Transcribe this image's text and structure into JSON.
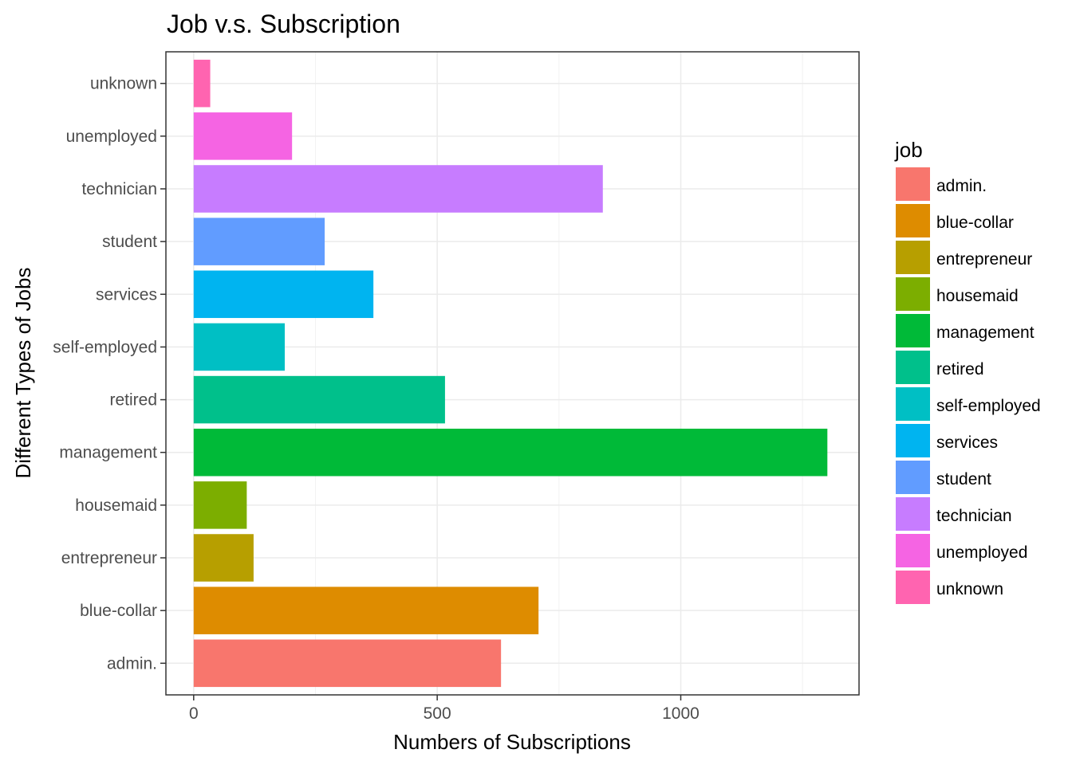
{
  "chart_data": {
    "type": "bar",
    "orientation": "horizontal",
    "title": "Job v.s. Subscription",
    "xlabel": "Numbers of Subscriptions",
    "ylabel": "Different Types of Jobs",
    "categories": [
      "admin.",
      "blue-collar",
      "entrepreneur",
      "housemaid",
      "management",
      "retired",
      "self-employed",
      "services",
      "student",
      "technician",
      "unemployed",
      "unknown"
    ],
    "values": [
      631,
      708,
      123,
      109,
      1301,
      516,
      187,
      369,
      269,
      840,
      202,
      34
    ],
    "colors": [
      "#F8766D",
      "#DE8C00",
      "#B79F00",
      "#7CAE00",
      "#00BA38",
      "#00C08B",
      "#00BFC4",
      "#00B4F0",
      "#619CFF",
      "#C77CFF",
      "#F564E3",
      "#FF64B0"
    ],
    "xlim": [
      -57,
      1366
    ],
    "xticks": [
      0,
      500,
      1000
    ],
    "grid": true,
    "legend": {
      "title": "job",
      "position": "right",
      "entries": [
        "admin.",
        "blue-collar",
        "entrepreneur",
        "housemaid",
        "management",
        "retired",
        "self-employed",
        "services",
        "student",
        "technician",
        "unemployed",
        "unknown"
      ]
    }
  }
}
